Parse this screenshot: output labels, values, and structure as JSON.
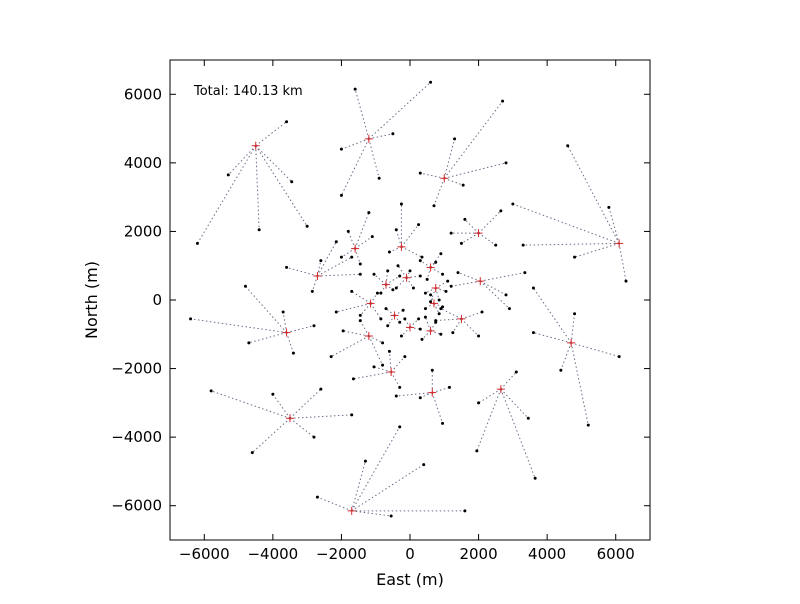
{
  "chart_data": {
    "type": "scatter",
    "title": "",
    "xlabel": "East (m)",
    "ylabel": "North (m)",
    "annotation": "Total: 140.13 km",
    "xlim": [
      -7000,
      7000
    ],
    "ylim": [
      -7000,
      7000
    ],
    "x_ticks": [
      -6000,
      -4000,
      -2000,
      0,
      2000,
      4000,
      6000
    ],
    "y_ticks": [
      -6000,
      -4000,
      -2000,
      0,
      2000,
      4000,
      6000
    ],
    "grid": false,
    "legend": "none",
    "colors": {
      "station": "#000000",
      "hub": "#d62728",
      "link": "#6b6b8a",
      "axes": "#000000"
    },
    "clusters": [
      {
        "hub": [
          -4500,
          4500
        ],
        "stations": [
          [
            -3600,
            5200
          ],
          [
            -5300,
            3650
          ],
          [
            -6200,
            1650
          ],
          [
            -4400,
            2050
          ],
          [
            -3450,
            3450
          ],
          [
            -3000,
            2150
          ]
        ]
      },
      {
        "hub": [
          -1200,
          4700
        ],
        "stations": [
          [
            -1600,
            6150
          ],
          [
            600,
            6350
          ],
          [
            -500,
            4850
          ],
          [
            -2000,
            4400
          ],
          [
            -2000,
            3050
          ],
          [
            -900,
            3550
          ]
        ]
      },
      {
        "hub": [
          1000,
          3550
        ],
        "stations": [
          [
            2700,
            5800
          ],
          [
            2800,
            4000
          ],
          [
            1300,
            4700
          ],
          [
            300,
            3700
          ],
          [
            700,
            2750
          ],
          [
            1550,
            3350
          ]
        ]
      },
      {
        "hub": [
          6100,
          1650
        ],
        "stations": [
          [
            4600,
            4500
          ],
          [
            5800,
            2700
          ],
          [
            3000,
            2800
          ],
          [
            3300,
            1600
          ],
          [
            4800,
            1250
          ],
          [
            6300,
            550
          ]
        ]
      },
      {
        "hub": [
          4700,
          -1250
        ],
        "stations": [
          [
            3600,
            350
          ],
          [
            3600,
            -950
          ],
          [
            4800,
            -400
          ],
          [
            4400,
            -2050
          ],
          [
            5200,
            -3650
          ],
          [
            6100,
            -1650
          ]
        ]
      },
      {
        "hub": [
          2650,
          -2600
        ],
        "stations": [
          [
            3100,
            -2100
          ],
          [
            2000,
            -3000
          ],
          [
            1950,
            -4400
          ],
          [
            3450,
            -3450
          ],
          [
            3650,
            -5200
          ]
        ]
      },
      {
        "hub": [
          -1700,
          -6150
        ],
        "stations": [
          [
            -2700,
            -5750
          ],
          [
            -1300,
            -4700
          ],
          [
            -300,
            -3700
          ],
          [
            400,
            -4800
          ],
          [
            1600,
            -6150
          ],
          [
            -550,
            -6300
          ]
        ]
      },
      {
        "hub": [
          -3500,
          -3450
        ],
        "stations": [
          [
            -2600,
            -2600
          ],
          [
            -5800,
            -2650
          ],
          [
            -4000,
            -2750
          ],
          [
            -1700,
            -3350
          ],
          [
            -4600,
            -4450
          ],
          [
            -2800,
            -4000
          ]
        ]
      },
      {
        "hub": [
          -3600,
          -950
        ],
        "stations": [
          [
            -4800,
            400
          ],
          [
            -6400,
            -550
          ],
          [
            -3700,
            -350
          ],
          [
            -2800,
            -750
          ],
          [
            -4700,
            -1250
          ],
          [
            -3400,
            -1550
          ]
        ]
      },
      {
        "hub": [
          -2700,
          700
        ],
        "stations": [
          [
            -3600,
            950
          ],
          [
            -2600,
            1150
          ],
          [
            -1450,
            750
          ],
          [
            -2850,
            250
          ],
          [
            -2150,
            1700
          ],
          [
            -1700,
            1250
          ]
        ]
      },
      {
        "hub": [
          -1600,
          1500
        ],
        "stations": [
          [
            -1200,
            2550
          ],
          [
            -1800,
            2000
          ],
          [
            -1100,
            1850
          ],
          [
            -2000,
            1250
          ],
          [
            -1450,
            1050
          ]
        ]
      },
      {
        "hub": [
          -250,
          1550
        ],
        "stations": [
          [
            -250,
            2800
          ],
          [
            250,
            2200
          ],
          [
            -600,
            1400
          ],
          [
            350,
            1250
          ],
          [
            -400,
            2050
          ]
        ]
      },
      {
        "hub": [
          2000,
          1950
        ],
        "stations": [
          [
            2650,
            2600
          ],
          [
            1600,
            2350
          ],
          [
            1200,
            1950
          ],
          [
            2500,
            1600
          ],
          [
            1500,
            1650
          ]
        ]
      },
      {
        "hub": [
          2050,
          550
        ],
        "stations": [
          [
            3350,
            800
          ],
          [
            2800,
            150
          ],
          [
            1400,
            800
          ],
          [
            1200,
            400
          ],
          [
            2900,
            -250
          ]
        ]
      },
      {
        "hub": [
          1500,
          -550
        ],
        "stations": [
          [
            2100,
            -350
          ],
          [
            2000,
            -1050
          ],
          [
            750,
            -600
          ],
          [
            900,
            -250
          ],
          [
            1250,
            -950
          ]
        ]
      },
      {
        "hub": [
          650,
          -2700
        ],
        "stations": [
          [
            950,
            -3600
          ],
          [
            1150,
            -2550
          ],
          [
            300,
            -2850
          ],
          [
            650,
            -2050
          ],
          [
            -400,
            -2800
          ]
        ]
      },
      {
        "hub": [
          -550,
          -2100
        ],
        "stations": [
          [
            -1650,
            -2300
          ],
          [
            -600,
            -1500
          ],
          [
            -300,
            -2550
          ],
          [
            -1050,
            -1950
          ],
          [
            -150,
            -1650
          ]
        ]
      },
      {
        "hub": [
          -1200,
          -1050
        ],
        "stations": [
          [
            -2300,
            -1650
          ],
          [
            -1950,
            -900
          ],
          [
            -800,
            -1250
          ],
          [
            -1450,
            -600
          ],
          [
            -800,
            -1900
          ]
        ]
      },
      {
        "hub": [
          -1150,
          -100
        ],
        "stations": [
          [
            -1700,
            250
          ],
          [
            -2150,
            -350
          ],
          [
            -850,
            -550
          ],
          [
            -1450,
            -450
          ],
          [
            -950,
            200
          ]
        ]
      },
      {
        "hub": [
          -700,
          450
        ],
        "stations": [
          [
            -1050,
            750
          ],
          [
            -850,
            200
          ],
          [
            -300,
            700
          ],
          [
            -500,
            300
          ],
          [
            -650,
            850
          ]
        ]
      },
      {
        "hub": [
          -100,
          650
        ],
        "stations": [
          [
            300,
            700
          ],
          [
            -350,
            1000
          ],
          [
            100,
            350
          ],
          [
            -400,
            350
          ],
          [
            0,
            850
          ]
        ]
      },
      {
        "hub": [
          600,
          950
        ],
        "stations": [
          [
            900,
            1350
          ],
          [
            300,
            1150
          ],
          [
            950,
            750
          ],
          [
            500,
            600
          ],
          [
            750,
            1100
          ]
        ]
      },
      {
        "hub": [
          750,
          350
        ],
        "stations": [
          [
            1100,
            550
          ],
          [
            850,
            0
          ],
          [
            450,
            200
          ],
          [
            1050,
            250
          ],
          [
            600,
            -50
          ]
        ]
      },
      {
        "hub": [
          700,
          -100
        ],
        "stations": [
          [
            950,
            -200
          ],
          [
            450,
            -250
          ],
          [
            600,
            150
          ],
          [
            850,
            -400
          ]
        ]
      },
      {
        "hub": [
          600,
          -900
        ],
        "stations": [
          [
            900,
            -1000
          ],
          [
            350,
            -1150
          ],
          [
            750,
            -650
          ],
          [
            450,
            -500
          ]
        ]
      },
      {
        "hub": [
          0,
          -800
        ],
        "stations": [
          [
            300,
            -850
          ],
          [
            -250,
            -1050
          ],
          [
            -150,
            -550
          ],
          [
            250,
            -550
          ]
        ]
      },
      {
        "hub": [
          -450,
          -450
        ],
        "stations": [
          [
            -650,
            -750
          ],
          [
            -700,
            -250
          ],
          [
            -200,
            -300
          ],
          [
            -300,
            -650
          ]
        ]
      }
    ]
  }
}
